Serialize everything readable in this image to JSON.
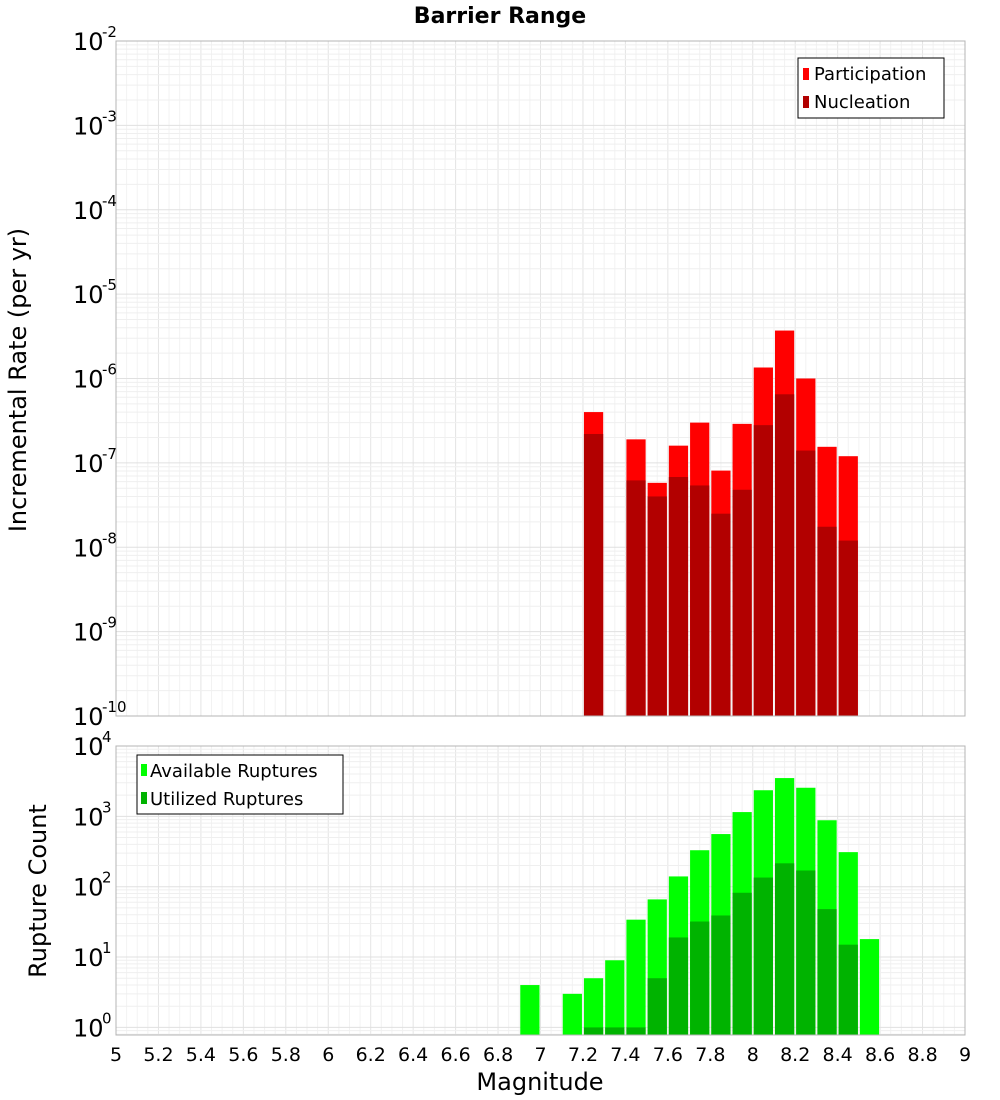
{
  "chart_data": [
    {
      "type": "bar",
      "title": "Barrier Range",
      "xlabel": "",
      "ylabel": "Incremental Rate (per yr)",
      "yscale": "log",
      "xlim": [
        5,
        9
      ],
      "ylim": [
        1e-10,
        0.01
      ],
      "grid": true,
      "legend_position": "top-right",
      "y_tick_exponents": [
        "-10",
        "-9",
        "-8",
        "-7",
        "-6",
        "-5",
        "-4",
        "-3",
        "-2"
      ],
      "bar_width": 0.1,
      "series": [
        {
          "name": "Participation",
          "color": "#ff0000",
          "x": [
            7.25,
            7.45,
            7.55,
            7.65,
            7.75,
            7.85,
            7.95,
            8.05,
            8.15,
            8.25,
            8.35,
            8.45
          ],
          "values": [
            4e-07,
            1.9e-07,
            5.8e-08,
            1.6e-07,
            3e-07,
            8.1e-08,
            2.9e-07,
            1.35e-06,
            3.7e-06,
            1e-06,
            1.55e-07,
            1.2e-07
          ]
        },
        {
          "name": "Nucleation",
          "color": "#b20000",
          "x": [
            7.25,
            7.45,
            7.55,
            7.65,
            7.75,
            7.85,
            7.95,
            8.05,
            8.15,
            8.25,
            8.35,
            8.45
          ],
          "values": [
            2.2e-07,
            6.2e-08,
            4e-08,
            6.8e-08,
            5.4e-08,
            2.5e-08,
            4.8e-08,
            2.8e-07,
            6.5e-07,
            1.4e-07,
            1.75e-08,
            1.2e-08
          ]
        }
      ]
    },
    {
      "type": "bar",
      "title": "",
      "xlabel": "Magnitude",
      "ylabel": "Rupture Count",
      "yscale": "log",
      "xlim": [
        5,
        9
      ],
      "ylim": [
        0.78,
        10000.0
      ],
      "grid": true,
      "legend_position": "top-left",
      "x_ticks": [
        "5",
        "5.2",
        "5.4",
        "5.6",
        "5.8",
        "6",
        "6.2",
        "6.4",
        "6.6",
        "6.8",
        "7",
        "7.2",
        "7.4",
        "7.6",
        "7.8",
        "8",
        "8.2",
        "8.4",
        "8.6",
        "8.8",
        "9"
      ],
      "y_tick_exponents": [
        "0",
        "1",
        "2",
        "3",
        "4"
      ],
      "bar_width": 0.1,
      "series": [
        {
          "name": "Available Ruptures",
          "color": "#00ff00",
          "x": [
            6.95,
            7.15,
            7.25,
            7.35,
            7.45,
            7.55,
            7.65,
            7.75,
            7.85,
            7.95,
            8.05,
            8.15,
            8.25,
            8.35,
            8.45,
            8.55
          ],
          "values": [
            4,
            3,
            5,
            9,
            34,
            66,
            140,
            330,
            560,
            1150,
            2350,
            3500,
            2550,
            880,
            310,
            18
          ]
        },
        {
          "name": "Utilized Ruptures",
          "color": "#00b300",
          "x": [
            7.25,
            7.35,
            7.45,
            7.55,
            7.65,
            7.75,
            7.85,
            7.95,
            8.05,
            8.15,
            8.25,
            8.35,
            8.45
          ],
          "values": [
            1,
            1,
            1,
            5,
            19,
            32,
            39,
            82,
            135,
            215,
            170,
            48,
            15
          ]
        }
      ]
    }
  ]
}
